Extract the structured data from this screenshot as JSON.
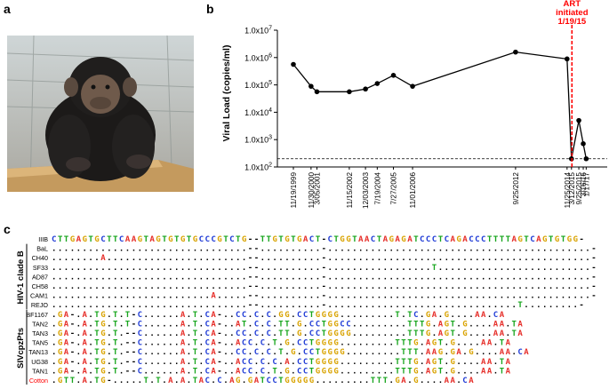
{
  "panels": {
    "a": "a",
    "b": "b",
    "c": "c"
  },
  "chart_data": {
    "type": "line",
    "ylabel": "Viral Load (copies/ml)",
    "yscale": "log",
    "ylim": [
      2,
      7
    ],
    "y_ticks": [
      {
        "exp": 7,
        "label": "1.0x10^7"
      },
      {
        "exp": 6,
        "label": "1.0x10^6"
      },
      {
        "exp": 5,
        "label": "1.0x10^5"
      },
      {
        "exp": 4,
        "label": "1.0x10^4"
      },
      {
        "exp": 3,
        "label": "1.0x10^3"
      },
      {
        "exp": 2,
        "label": "1.0x10^2"
      }
    ],
    "x_ticks": [
      "11/19/1999",
      "11/30/2000",
      "3/05/2001",
      "11/15/2002",
      "12/03/2003",
      "7/19/2004",
      "7/27/2005",
      "11/01/2006",
      "9/25/2012",
      "11/25/2014",
      "3/12/2015",
      "9/25/2015",
      "3/16/16",
      "1/17/17"
    ],
    "series": [
      {
        "x": [
          "11/19/1999",
          "11/30/2000",
          "3/05/2001",
          "11/15/2002",
          "12/03/2003",
          "7/19/2004",
          "7/27/2005",
          "11/01/2006",
          "9/25/2012",
          "11/25/2014",
          "3/12/2015",
          "9/25/2015",
          "3/16/16",
          "1/17/17"
        ],
        "log10_values": [
          5.75,
          4.95,
          4.75,
          4.75,
          4.85,
          5.05,
          5.35,
          4.95,
          6.2,
          5.95,
          2.3,
          3.7,
          2.85,
          2.3
        ],
        "color": "#000000"
      }
    ],
    "threshold_log10": 2.3,
    "annotation": {
      "text": [
        "ART",
        "initiated",
        "1/19/15"
      ],
      "x": "1/19/15",
      "color": "#ff0000"
    }
  },
  "alignment": {
    "group_labels": [
      "HIV-1 clade B",
      "SIVcpzPts"
    ],
    "reference": {
      "name": "IIIB",
      "sequence": "CTTGAGTGCTTCAAGTAGTGTGTGCCCGTCTG--TTGTGTGACT-CTGGTAACTAGAGATCCCTCAGACCCTTTTAGTCAGTGTGG-"
    },
    "hiv_rows": [
      {
        "name": "BaL",
        "sequence": "................................--..........-...........................................-"
      },
      {
        "name": "CH40",
        "sequence": "........A.......................--..........-...........................................-"
      },
      {
        "name": "SF33",
        "sequence": "................................--..........-.................T.........................-"
      },
      {
        "name": "AD87",
        "sequence": "................................--..........-...........................................-"
      },
      {
        "name": "CH58",
        "sequence": "................................--..........-...........................................-"
      },
      {
        "name": "CAM1",
        "sequence": "..........................A.....--..........-...........................................-"
      },
      {
        "name": "REJO",
        "sequence": "................................--..........-...............................T.........-"
      }
    ],
    "siv_rows": [
      {
        "name": "BF1167",
        "sequence": ".GA-.A.TG.T.T-C......A.T.CA-..CC.C.C.GG.CCTGGGG.........T.TC.GA.G....AA.CA"
      },
      {
        "name": "TAN2",
        "sequence": ".GA-.A.TG.T.T-C......A.T.CA-..AT.C.C.TT.G.CCTGGCC.........TTTG.AGT.G....AA.TA"
      },
      {
        "name": "TAN3",
        "sequence": ".GA-.A.TG.T.--C......A.T.CA-..CC.C.C.TT.G.CCTGGGG.........TTTG.AGT.G....AA.TA"
      },
      {
        "name": "TAN5",
        "sequence": ".GA-.A.TG.T.--C......A.T.CA-..ACC.C.T.G.CCTGGGG.........TTTG.AGT.G....AA.TA"
      },
      {
        "name": "TAN13",
        "sequence": ".GA-.A.TG.T.--C......A.T.CA-..CC.C.C.T.G.CCTGGGG.........TTT.AAG.GA.G....AA.CA"
      },
      {
        "name": "UG38",
        "sequence": ".GA-.A.TG.T.--C......A.T.CA-..ACC.C.C.A.CCTGGGG.........TTTG.AGT.G....AA.TA"
      },
      {
        "name": "TAN1",
        "sequence": ".GA-.A.TG.T.--C......A.T.CA-..ACC.C.T.G.CCTGGGG.........TTTG.AGT.G....AA.TA"
      },
      {
        "name": "Cotton",
        "sequence": ".GTT.A.TG-.....T.T.A.A.TAC.C.AG.GATCCTGGGGG.........TTT.GA.G....AA.CA",
        "highlight": true,
        "name_color": "#ff0000"
      }
    ],
    "base_colors": {
      "A": "#e6302b",
      "C": "#1f3bd6",
      "G": "#d9a300",
      "T": "#17a51d",
      ".": "#000000",
      "-": "#000000"
    }
  }
}
